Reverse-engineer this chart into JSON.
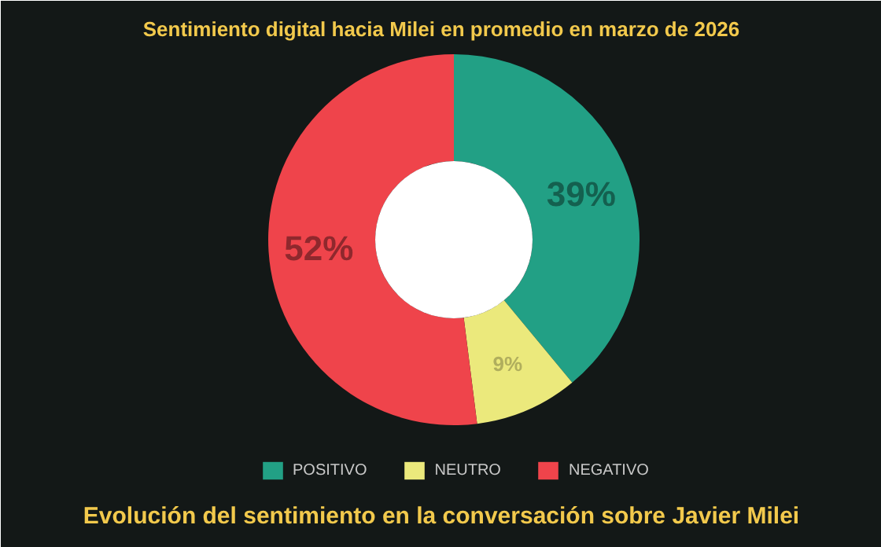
{
  "chart_data": {
    "type": "donut",
    "title": "Sentimiento digital hacia Milei en promedio en marzo de 2026",
    "categories": [
      "POSITIVO",
      "NEUTRO",
      "NEGATIVO"
    ],
    "values": [
      39,
      9,
      52
    ],
    "colors": [
      "#22a085",
      "#ebe97c",
      "#ef444b"
    ],
    "value_labels": [
      "39%",
      "9%",
      "52%"
    ],
    "legend": "bottom",
    "annotations": [
      "Evolución del sentimiento en la conversación sobre Javier Milei"
    ]
  }
}
